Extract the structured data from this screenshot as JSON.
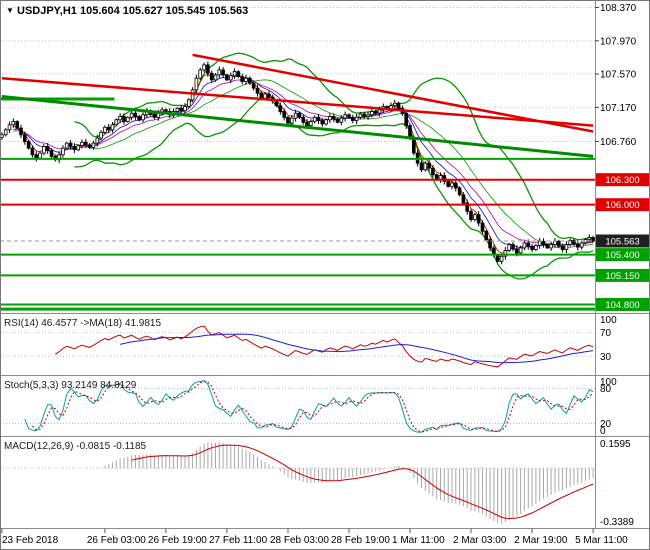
{
  "window_title": {
    "icon": "▼",
    "text": "USDJPY,H1 105.604 105.627 105.545 105.563"
  },
  "price_axis": {
    "grid_labels": [
      {
        "text": "108.370",
        "price": 108.37
      },
      {
        "text": "107.970",
        "price": 107.97
      },
      {
        "text": "107.570",
        "price": 107.57
      },
      {
        "text": "107.170",
        "price": 107.17
      },
      {
        "text": "106.760",
        "price": 106.76
      }
    ],
    "current": {
      "text": "105.563",
      "price": 105.563,
      "bg": "#1f1f1f"
    }
  },
  "time_axis": {
    "labels": [
      {
        "text": "23 Feb 2018",
        "bar": 0
      },
      {
        "text": "26 Feb 03:00",
        "bar": 27
      },
      {
        "text": "26 Feb 19:00",
        "bar": 43
      },
      {
        "text": "27 Feb 11:00",
        "bar": 59
      },
      {
        "text": "28 Feb 03:00",
        "bar": 75
      },
      {
        "text": "28 Feb 19:00",
        "bar": 91
      },
      {
        "text": "1 Mar 11:00",
        "bar": 107
      },
      {
        "text": "2 Mar 03:00",
        "bar": 123
      },
      {
        "text": "2 Mar 19:00",
        "bar": 139
      },
      {
        "text": "5 Mar 11:00",
        "bar": 155
      }
    ]
  },
  "chart_data": {
    "type": "candlestick",
    "symbol": "USDJPY",
    "timeframe": "H1",
    "current_bar": {
      "open": 105.604,
      "high": 105.627,
      "low": 105.545,
      "close": 105.563
    },
    "price_range": [
      104.71,
      108.46
    ],
    "closes": [
      106.84,
      106.9,
      106.96,
      107.0,
      106.92,
      106.84,
      106.76,
      106.68,
      106.6,
      106.56,
      106.62,
      106.7,
      106.65,
      106.58,
      106.54,
      106.6,
      106.68,
      106.74,
      106.7,
      106.66,
      106.71,
      106.75,
      106.72,
      106.69,
      106.74,
      106.8,
      106.87,
      106.93,
      106.9,
      106.96,
      107.02,
      107.06,
      107.0,
      107.05,
      107.1,
      107.06,
      107.02,
      107.08,
      107.12,
      107.09,
      107.05,
      107.1,
      107.14,
      107.12,
      107.08,
      107.12,
      107.16,
      107.13,
      107.18,
      107.26,
      107.38,
      107.52,
      107.62,
      107.68,
      107.58,
      107.5,
      107.56,
      107.62,
      107.56,
      107.5,
      107.55,
      107.6,
      107.54,
      107.48,
      107.52,
      107.46,
      107.4,
      107.34,
      107.28,
      107.33,
      107.29,
      107.25,
      107.19,
      107.12,
      107.05,
      106.98,
      107.04,
      107.1,
      107.05,
      106.99,
      106.95,
      107.0,
      107.05,
      107.01,
      106.97,
      107.02,
      107.06,
      107.03,
      106.99,
      107.04,
      107.08,
      107.05,
      107.01,
      107.05,
      107.09,
      107.06,
      107.08,
      107.12,
      107.1,
      107.14,
      107.18,
      107.15,
      107.19,
      107.22,
      107.16,
      107.1,
      106.95,
      106.8,
      106.62,
      106.5,
      106.42,
      106.5,
      106.44,
      106.36,
      106.3,
      106.35,
      106.28,
      106.22,
      106.26,
      106.2,
      106.12,
      106.02,
      105.92,
      105.82,
      105.88,
      105.78,
      105.68,
      105.58,
      105.48,
      105.4,
      105.32,
      105.38,
      105.45,
      105.52,
      105.47,
      105.42,
      105.48,
      105.54,
      105.5,
      105.46,
      105.51,
      105.56,
      105.52,
      105.48,
      105.52,
      105.56,
      105.5,
      105.46,
      105.52,
      105.57,
      105.53,
      105.49,
      105.54,
      105.58,
      105.604,
      105.563
    ],
    "levels": [
      {
        "price": 106.3,
        "color": "#e00000",
        "w": 2,
        "badge": true,
        "label": "106.300"
      },
      {
        "price": 106.0,
        "color": "#e00000",
        "w": 2,
        "badge": true,
        "label": "106.000"
      },
      {
        "price": 105.4,
        "color": "#00a000",
        "w": 2,
        "badge": true,
        "label": "105.400"
      },
      {
        "price": 105.15,
        "color": "#00a000",
        "w": 2,
        "badge": true,
        "label": "105.150"
      },
      {
        "price": 104.8,
        "color": "#00a000",
        "w": 2,
        "badge": true,
        "label": "104.800"
      },
      {
        "price": 104.745,
        "color": "#00a000",
        "w": 3,
        "badge": false,
        "label": ""
      },
      {
        "price": 106.55,
        "color": "#00a000",
        "w": 2,
        "badge": false,
        "label": ""
      },
      {
        "price": 107.27,
        "color": "#00a000",
        "w": 3,
        "badge": false,
        "label": "",
        "bar1": 0,
        "bar2": 29
      }
    ],
    "trendlines": [
      {
        "bar1": 0,
        "p1": 107.52,
        "bar2": 155,
        "p2": 106.95,
        "color": "#e00000",
        "w": 2.5
      },
      {
        "bar1": 50,
        "p1": 107.8,
        "bar2": 155,
        "p2": 106.88,
        "color": "#e00000",
        "w": 2.5
      },
      {
        "bar1": 0,
        "p1": 107.3,
        "bar2": 155,
        "p2": 106.58,
        "color": "#008a00",
        "w": 3
      }
    ],
    "overlays": {
      "bollinger": {
        "period": 20,
        "deviation": 2,
        "color": "#0a9600"
      },
      "emas": [
        {
          "period": 4,
          "color": "#d02000"
        },
        {
          "period": 8,
          "color": "#2020d0"
        },
        {
          "period": 13,
          "color": "#b020b0"
        }
      ]
    },
    "indicators": [
      {
        "id": "rsi",
        "title": "RSI(14) 46.4577 ->MA(18) 41.9815",
        "period": 14,
        "ma_period": 18,
        "range": [
          0,
          100
        ],
        "level_lines": [
          70,
          30
        ],
        "axis_labels": [
          {
            "v": 100,
            "text": "100"
          },
          {
            "v": 70,
            "text": "70"
          },
          {
            "v": 30,
            "text": "30"
          }
        ],
        "colors": {
          "main": "#c80000",
          "ma": "#2020c8"
        }
      },
      {
        "id": "stoch",
        "title": "Stoch(5,3,3) 93.2149 84.8129",
        "k_period": 5,
        "slowing": 3,
        "d_period": 3,
        "range": [
          0,
          100
        ],
        "level_lines": [
          80,
          20
        ],
        "axis_labels": [
          {
            "v": 100,
            "text": "100"
          },
          {
            "v": 80,
            "text": "80"
          },
          {
            "v": 20,
            "text": "20"
          },
          {
            "v": 0,
            "text": "0"
          }
        ],
        "colors": {
          "k": "#00a0a0",
          "d": "#c80000"
        }
      },
      {
        "id": "macd",
        "title": "MACD(12,26,9) -0.0815 -0.1185",
        "fast": 12,
        "slow": 26,
        "signal": 9,
        "range": [
          -0.36,
          0.185
        ],
        "pos_max": 0.1595,
        "neg_min": -0.3389,
        "axis_labels": [
          {
            "v": 0.1595,
            "text": "0.1595"
          },
          {
            "v": -0.3389,
            "text": "-0.3389"
          }
        ],
        "colors": {
          "hist": "#a8a8a8",
          "signal": "#c80000"
        }
      }
    ]
  }
}
